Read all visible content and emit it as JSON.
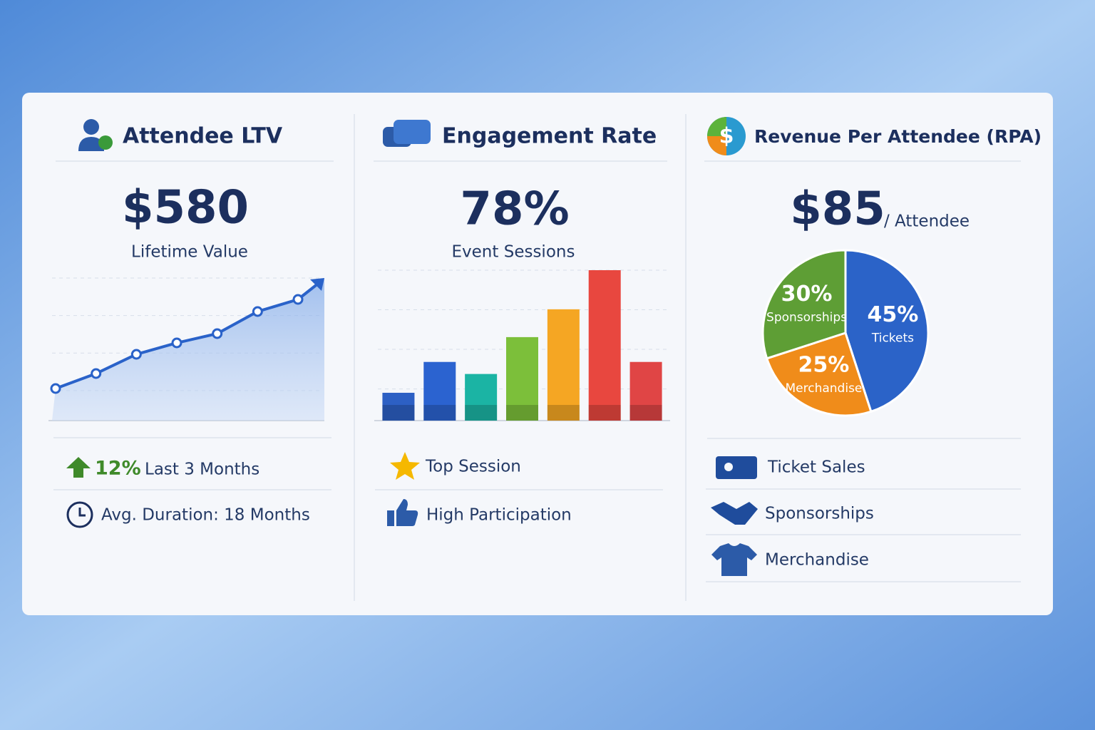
{
  "panels": [
    {
      "title": "Attendee LTV",
      "metric": "$580",
      "caption": "Lifetime Value",
      "chart": {
        "type": "line",
        "values": [
          22.5,
          33,
          46.5,
          54.5,
          61,
          76.5,
          85
        ],
        "color": "#2a62c9",
        "ylim": [
          0,
          100
        ],
        "grid": true
      },
      "items": [
        {
          "highlight": "12%",
          "text": "Last 3 Months"
        },
        {
          "text": "Avg. Duration: 18 Months"
        }
      ]
    },
    {
      "title": "Engagement Rate",
      "metric": "78%",
      "caption": "Event Sessions",
      "chart": {
        "type": "bar",
        "values": [
          18.5,
          39,
          31,
          55.5,
          74,
          100,
          39
        ],
        "colors": [
          "#2d60c4",
          "#2b63d0",
          "#1bb4a4",
          "#7cbf3a",
          "#f5a623",
          "#e8473f",
          "#e04545"
        ],
        "ylim": [
          0,
          100
        ],
        "grid": true
      },
      "items": [
        {
          "text": "Top Session"
        },
        {
          "text": "High Participation"
        }
      ]
    },
    {
      "title": "Revenue Per Attendee (RPA)",
      "metric": "$85",
      "metric_suffix": "/ Attendee",
      "chart": {
        "type": "pie",
        "categories": [
          "Tickets",
          "Merchandise",
          "Sponsorships"
        ],
        "values": [
          45,
          25,
          30
        ],
        "value_labels": [
          "45%",
          "25%",
          "30%"
        ],
        "colors": [
          "#2b63c8",
          "#f08c1a",
          "#5e9e35"
        ]
      },
      "items": [
        {
          "text": "Ticket Sales"
        },
        {
          "text": "Sponsorships"
        },
        {
          "text": "Merchandise"
        }
      ]
    }
  ]
}
